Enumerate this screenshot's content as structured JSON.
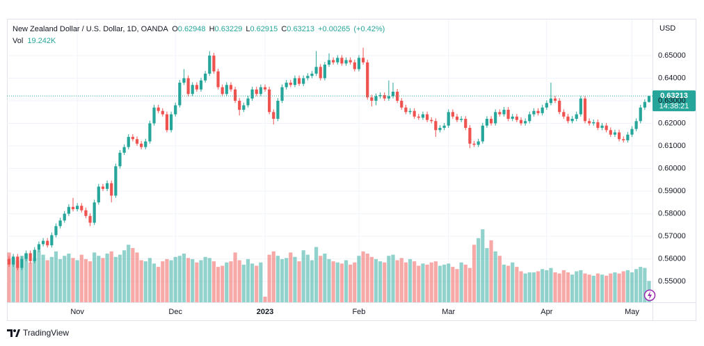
{
  "chart_data": {
    "type": "candlestick",
    "legend": {
      "title": "New Zealand Dollar / U.S. Dollar, 1D, OANDA",
      "open_label": "O",
      "open": 0.62948,
      "high_label": "H",
      "high": 0.63229,
      "low_label": "L",
      "low": 0.62915,
      "close_label": "C",
      "close": 0.63213,
      "change": {
        "value": 0.00265,
        "label": "+0.00265"
      },
      "change_pct": {
        "value": 0.42,
        "label": "(+0.42%)"
      },
      "vol_name": "Vol",
      "vol": {
        "value": 19242,
        "label": "19.242K"
      }
    },
    "currency": "USD",
    "countdown": "14:38:21",
    "up_color": "#26a69a",
    "down_color": "#ef5350",
    "grid": true,
    "ylim": [
      0.5408,
      0.666
    ],
    "yticks": [
      {
        "value": 0.55,
        "label": "0.55000"
      },
      {
        "value": 0.56,
        "label": "0.56000"
      },
      {
        "value": 0.57,
        "label": "0.57000"
      },
      {
        "value": 0.58,
        "label": "0.58000"
      },
      {
        "value": 0.59,
        "label": "0.59000"
      },
      {
        "value": 0.6,
        "label": "0.60000"
      },
      {
        "value": 0.61,
        "label": "0.61000"
      },
      {
        "value": 0.62,
        "label": "0.62000"
      },
      {
        "value": 0.63,
        "label": "0.63000"
      },
      {
        "value": 0.64,
        "label": "0.64000"
      },
      {
        "value": 0.65,
        "label": "0.65000"
      }
    ],
    "categories": [
      null,
      null,
      null,
      null,
      null,
      null,
      null,
      null,
      null,
      null,
      null,
      null,
      null,
      null,
      null,
      null,
      "Nov",
      null,
      null,
      null,
      null,
      null,
      null,
      null,
      null,
      null,
      null,
      null,
      null,
      null,
      null,
      null,
      null,
      null,
      null,
      null,
      null,
      null,
      null,
      "Dec",
      null,
      null,
      null,
      null,
      null,
      null,
      null,
      null,
      null,
      null,
      null,
      null,
      null,
      null,
      null,
      null,
      null,
      null,
      null,
      null,
      "2023",
      null,
      null,
      null,
      null,
      null,
      null,
      null,
      null,
      null,
      null,
      null,
      null,
      null,
      null,
      null,
      null,
      null,
      null,
      null,
      null,
      null,
      "Feb",
      null,
      null,
      null,
      null,
      null,
      null,
      null,
      null,
      null,
      null,
      null,
      null,
      null,
      null,
      null,
      null,
      null,
      null,
      null,
      null,
      "Mar",
      null,
      null,
      null,
      null,
      null,
      null,
      null,
      null,
      null,
      null,
      null,
      null,
      null,
      null,
      null,
      null,
      null,
      null,
      null,
      null,
      null,
      null,
      "Apr",
      null,
      null,
      null,
      null,
      null,
      null,
      null,
      null,
      null,
      null,
      null,
      null,
      null,
      null,
      null,
      null,
      null,
      null,
      null,
      "May",
      null,
      null,
      null,
      null
    ],
    "open": [
      0.56,
      0.5575,
      0.561,
      0.556,
      0.56,
      0.5625,
      0.559,
      0.564,
      0.5665,
      0.568,
      0.566,
      0.5705,
      0.5745,
      0.577,
      0.58,
      0.583,
      0.582,
      0.5835,
      0.5815,
      0.579,
      0.576,
      0.585,
      0.592,
      0.591,
      0.5935,
      0.588,
      0.601,
      0.607,
      0.6095,
      0.614,
      0.613,
      0.611,
      0.6095,
      0.612,
      0.62,
      0.627,
      0.6255,
      0.624,
      0.617,
      0.624,
      0.628,
      0.638,
      0.64,
      0.633,
      0.637,
      0.635,
      0.639,
      0.642,
      0.65,
      0.643,
      0.636,
      0.633,
      0.637,
      0.635,
      0.63,
      0.626,
      0.628,
      0.631,
      0.635,
      0.633,
      0.636,
      0.635,
      0.625,
      0.622,
      0.63,
      0.636,
      0.638,
      0.637,
      0.64,
      0.6375,
      0.64,
      0.641,
      0.642,
      0.645,
      0.64,
      0.646,
      0.648,
      0.647,
      0.649,
      0.6465,
      0.648,
      0.647,
      0.644,
      0.649,
      0.647,
      0.6315,
      0.63,
      0.632,
      0.6325,
      0.631,
      0.632,
      0.634,
      0.63,
      0.627,
      0.625,
      0.6255,
      0.623,
      0.6225,
      0.624,
      0.6215,
      0.621,
      0.617,
      0.618,
      0.619,
      0.625,
      0.623,
      0.6215,
      0.622,
      0.618,
      0.611,
      0.6105,
      0.612,
      0.619,
      0.622,
      0.62,
      0.625,
      0.624,
      0.626,
      0.622,
      0.623,
      0.6215,
      0.62,
      0.621,
      0.624,
      0.6255,
      0.6245,
      0.627,
      0.629,
      0.631,
      0.63,
      0.625,
      0.623,
      0.621,
      0.622,
      0.624,
      0.631,
      0.621,
      0.62,
      0.6205,
      0.618,
      0.619,
      0.617,
      0.615,
      0.616,
      0.613,
      0.6125,
      0.615,
      0.6175,
      0.621,
      0.627,
      0.62948
    ],
    "high": [
      0.5612,
      0.5622,
      0.5622,
      0.5612,
      0.5637,
      0.5637,
      0.5652,
      0.5677,
      0.5692,
      0.5692,
      0.5717,
      0.5757,
      0.5782,
      0.5812,
      0.5842,
      0.587,
      0.5847,
      0.5847,
      0.5827,
      0.5802,
      0.5862,
      0.5932,
      0.5932,
      0.5947,
      0.5947,
      0.6022,
      0.6082,
      0.6107,
      0.6152,
      0.6152,
      0.6142,
      0.6122,
      0.6132,
      0.6212,
      0.6282,
      0.6282,
      0.6267,
      0.6252,
      0.6252,
      0.6292,
      0.6392,
      0.644,
      0.6412,
      0.6382,
      0.6382,
      0.6402,
      0.6432,
      0.652,
      0.6512,
      0.6442,
      0.6372,
      0.6382,
      0.6382,
      0.6362,
      0.6312,
      0.6292,
      0.6322,
      0.6362,
      0.6362,
      0.6372,
      0.6372,
      0.6362,
      0.6262,
      0.6312,
      0.6372,
      0.6392,
      0.6392,
      0.6412,
      0.6412,
      0.6412,
      0.6422,
      0.6432,
      0.652,
      0.6462,
      0.6472,
      0.651,
      0.6492,
      0.6502,
      0.6502,
      0.6492,
      0.6492,
      0.6482,
      0.6502,
      0.6535,
      0.6482,
      0.6327,
      0.6332,
      0.6337,
      0.6337,
      0.639,
      0.638,
      0.6352,
      0.6312,
      0.6282,
      0.6267,
      0.6267,
      0.6242,
      0.6252,
      0.6252,
      0.6227,
      0.6222,
      0.6192,
      0.6202,
      0.6262,
      0.6262,
      0.6242,
      0.6232,
      0.6232,
      0.6192,
      0.6122,
      0.6132,
      0.6202,
      0.6232,
      0.6232,
      0.6262,
      0.6262,
      0.6272,
      0.6272,
      0.6242,
      0.6242,
      0.6227,
      0.6222,
      0.6252,
      0.6267,
      0.6267,
      0.6282,
      0.6302,
      0.638,
      0.6322,
      0.6312,
      0.6262,
      0.6242,
      0.6232,
      0.6252,
      0.6322,
      0.6322,
      0.6222,
      0.6217,
      0.6217,
      0.6202,
      0.6202,
      0.6182,
      0.6172,
      0.6172,
      0.6142,
      0.6162,
      0.6187,
      0.6222,
      0.6282,
      0.6307,
      0.63229
    ],
    "low": [
      0.5565,
      0.5565,
      0.555,
      0.555,
      0.559,
      0.558,
      0.558,
      0.563,
      0.5655,
      0.565,
      0.565,
      0.5695,
      0.5735,
      0.576,
      0.579,
      0.581,
      0.581,
      0.5805,
      0.578,
      0.5745,
      0.575,
      0.584,
      0.59,
      0.59,
      0.585,
      0.587,
      0.6,
      0.606,
      0.6085,
      0.612,
      0.61,
      0.6085,
      0.6085,
      0.611,
      0.619,
      0.6245,
      0.623,
      0.616,
      0.616,
      0.623,
      0.627,
      0.637,
      0.632,
      0.632,
      0.634,
      0.634,
      0.638,
      0.641,
      0.642,
      0.635,
      0.632,
      0.632,
      0.634,
      0.629,
      0.6235,
      0.625,
      0.627,
      0.63,
      0.632,
      0.632,
      0.634,
      0.624,
      0.6195,
      0.621,
      0.629,
      0.635,
      0.636,
      0.636,
      0.6365,
      0.6365,
      0.639,
      0.64,
      0.641,
      0.639,
      0.639,
      0.645,
      0.646,
      0.646,
      0.6455,
      0.6455,
      0.646,
      0.643,
      0.643,
      0.646,
      0.6305,
      0.6275,
      0.628,
      0.631,
      0.63,
      0.63,
      0.631,
      0.629,
      0.626,
      0.624,
      0.624,
      0.622,
      0.6215,
      0.6215,
      0.6205,
      0.62,
      0.614,
      0.616,
      0.617,
      0.618,
      0.622,
      0.6205,
      0.6205,
      0.617,
      0.609,
      0.6095,
      0.6095,
      0.611,
      0.618,
      0.619,
      0.619,
      0.623,
      0.623,
      0.621,
      0.621,
      0.6205,
      0.619,
      0.619,
      0.62,
      0.623,
      0.6235,
      0.6235,
      0.626,
      0.628,
      0.629,
      0.624,
      0.622,
      0.62,
      0.62,
      0.621,
      0.623,
      0.62,
      0.619,
      0.619,
      0.617,
      0.617,
      0.616,
      0.614,
      0.614,
      0.612,
      0.6115,
      0.6115,
      0.614,
      0.6165,
      0.62,
      0.626,
      0.62915
    ],
    "close": [
      0.5575,
      0.561,
      0.556,
      0.56,
      0.5625,
      0.559,
      0.564,
      0.5665,
      0.568,
      0.566,
      0.5705,
      0.5745,
      0.577,
      0.58,
      0.583,
      0.582,
      0.5835,
      0.5815,
      0.579,
      0.576,
      0.585,
      0.592,
      0.591,
      0.5935,
      0.588,
      0.601,
      0.607,
      0.6095,
      0.614,
      0.613,
      0.611,
      0.6095,
      0.612,
      0.62,
      0.627,
      0.6255,
      0.624,
      0.617,
      0.624,
      0.628,
      0.638,
      0.64,
      0.633,
      0.637,
      0.635,
      0.639,
      0.642,
      0.65,
      0.643,
      0.636,
      0.633,
      0.637,
      0.635,
      0.63,
      0.626,
      0.628,
      0.631,
      0.635,
      0.633,
      0.636,
      0.635,
      0.625,
      0.622,
      0.63,
      0.636,
      0.638,
      0.637,
      0.64,
      0.6375,
      0.64,
      0.641,
      0.642,
      0.645,
      0.64,
      0.646,
      0.648,
      0.647,
      0.649,
      0.6465,
      0.648,
      0.647,
      0.644,
      0.649,
      0.647,
      0.6315,
      0.63,
      0.632,
      0.6325,
      0.631,
      0.632,
      0.634,
      0.63,
      0.627,
      0.625,
      0.6255,
      0.623,
      0.6225,
      0.624,
      0.6215,
      0.621,
      0.617,
      0.618,
      0.619,
      0.625,
      0.623,
      0.6215,
      0.622,
      0.618,
      0.611,
      0.6105,
      0.612,
      0.619,
      0.622,
      0.62,
      0.625,
      0.624,
      0.626,
      0.622,
      0.623,
      0.6215,
      0.62,
      0.621,
      0.624,
      0.6255,
      0.6245,
      0.627,
      0.629,
      0.631,
      0.63,
      0.625,
      0.623,
      0.621,
      0.622,
      0.624,
      0.631,
      0.621,
      0.62,
      0.6205,
      0.618,
      0.619,
      0.617,
      0.615,
      0.616,
      0.613,
      0.6125,
      0.615,
      0.6175,
      0.621,
      0.627,
      0.62948,
      0.63213
    ],
    "volume": [
      45000,
      40000,
      38000,
      42000,
      44000,
      36000,
      40000,
      47000,
      43000,
      38000,
      41000,
      46000,
      39000,
      42000,
      44000,
      40000,
      38000,
      43000,
      39000,
      37000,
      45000,
      42000,
      40000,
      44000,
      46000,
      41000,
      43000,
      47000,
      52000,
      49000,
      45000,
      38000,
      37000,
      40000,
      35000,
      32000,
      37000,
      39000,
      38000,
      41000,
      42000,
      44000,
      40000,
      39000,
      36000,
      38000,
      41000,
      40000,
      37000,
      32000,
      33000,
      36000,
      37000,
      45000,
      38000,
      34000,
      39000,
      35000,
      33000,
      36000,
      5000,
      43000,
      46000,
      42000,
      39000,
      40000,
      45000,
      41000,
      37000,
      47000,
      43000,
      38000,
      50000,
      42000,
      44000,
      39000,
      37000,
      36000,
      35000,
      38000,
      34000,
      36000,
      42000,
      46000,
      44000,
      41000,
      39000,
      37000,
      36000,
      42000,
      43000,
      38000,
      40000,
      36000,
      39000,
      37000,
      33000,
      35000,
      34000,
      36000,
      37000,
      33000,
      34000,
      35000,
      32000,
      30000,
      36000,
      34000,
      31000,
      52000,
      58000,
      66000,
      49000,
      56000,
      46000,
      42000,
      34000,
      33000,
      36000,
      32000,
      28000,
      26000,
      27000,
      27000,
      28000,
      30000,
      29000,
      31000,
      27000,
      26000,
      29000,
      27000,
      25000,
      28000,
      29000,
      26000,
      25000,
      24000,
      26000,
      25000,
      24000,
      26000,
      27000,
      26000,
      28000,
      29000,
      27000,
      30000,
      32000,
      31000,
      19242
    ]
  },
  "footer": {
    "brand": "TradingView"
  }
}
